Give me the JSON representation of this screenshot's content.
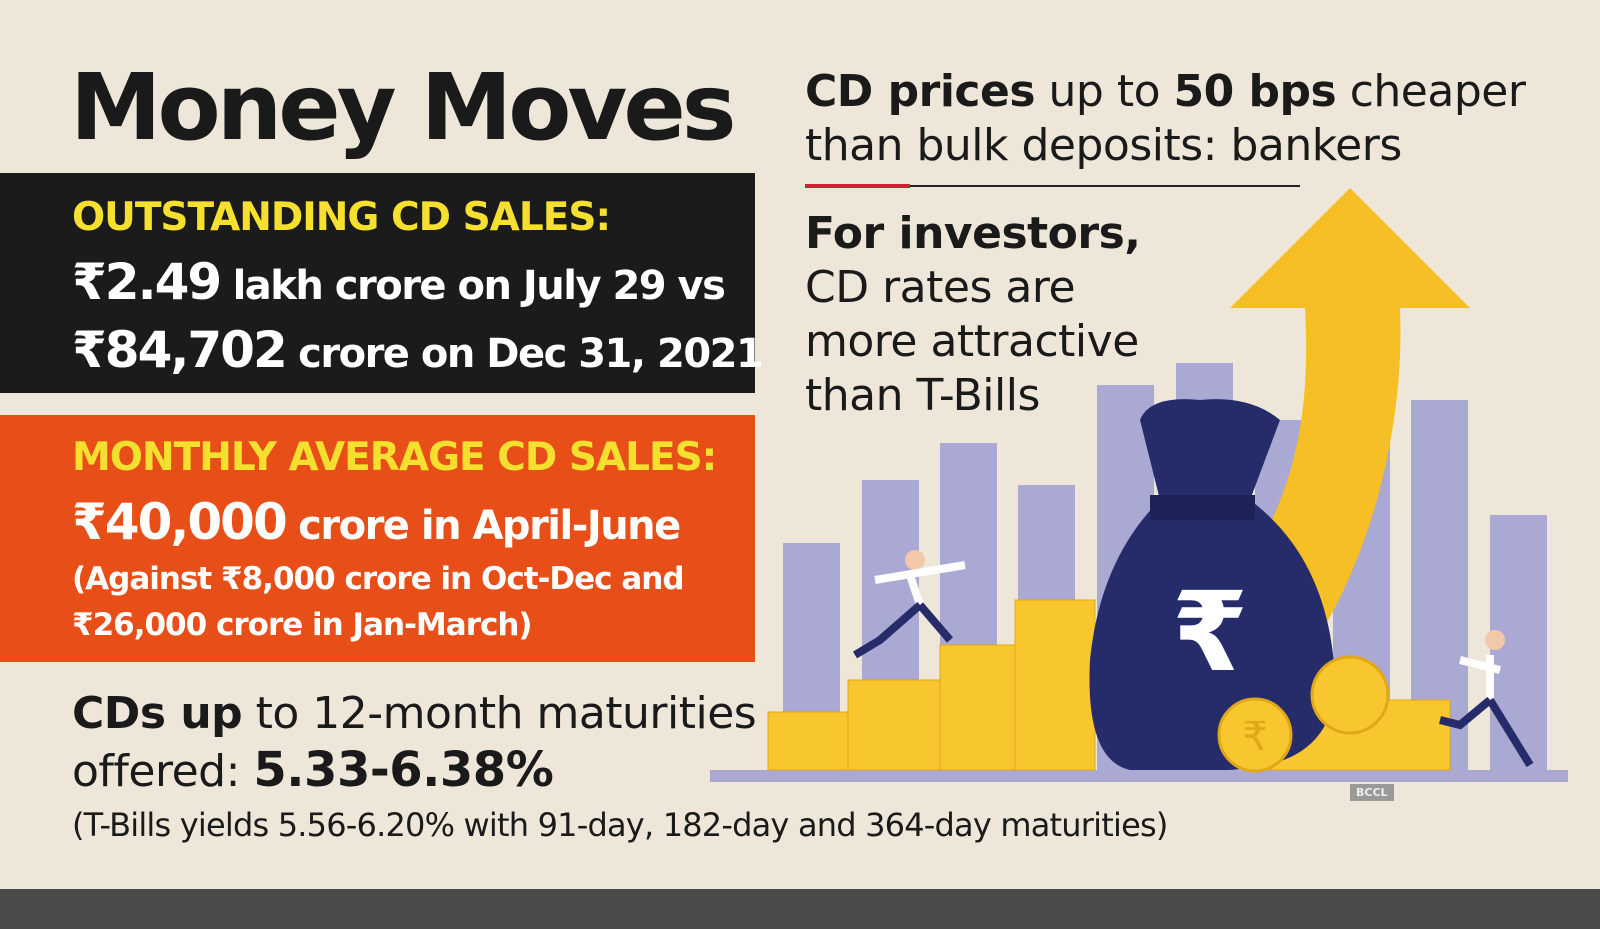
{
  "title": "Money Moves",
  "outstanding": {
    "heading": "OUTSTANDING CD SALES:",
    "line1_amount": "₹2.49",
    "line1_rest": " lakh crore on July 29 vs",
    "line2_amount": "₹84,702",
    "line2_rest": " crore on Dec 31, 2021"
  },
  "monthly": {
    "heading": "MONTHLY AVERAGE CD SALES:",
    "line1_amount": "₹40,000",
    "line1_rest": " crore in April-June",
    "line2": "(Against ₹8,000 crore in Oct-Dec and",
    "line3": "₹26,000 crore in Jan-March)"
  },
  "headline_right": {
    "bold1": "CD prices",
    "text1": " up to ",
    "bold2": "50 bps",
    "text2": " cheaper",
    "line2": "than bulk deposits: bankers"
  },
  "investors": {
    "bold": "For investors,",
    "line2": "CD rates are",
    "line3": "more attractive",
    "line4": "than T-Bills"
  },
  "maturities": {
    "bold": "CDs up",
    "text": " to 12-month maturities",
    "offered": "offered: ",
    "range": "5.33-6.38%",
    "note": "(T-Bills yields 5.56-6.20% with 91-day, 182-day and 364-day maturities)"
  },
  "credit": "BCCL",
  "colors": {
    "background": "#eee7d9",
    "black_box": "#1b1b1b",
    "orange_box": "#e84e17",
    "heading_yellow": "#f5e02f",
    "accent_red": "#d4202c",
    "bars": "#aaa9d3",
    "arrow": "#f6bf26",
    "bag": "#262c6a"
  },
  "icons": [
    "rupee-money-bag-icon",
    "up-arrow-icon",
    "rupee-coin-icon"
  ]
}
